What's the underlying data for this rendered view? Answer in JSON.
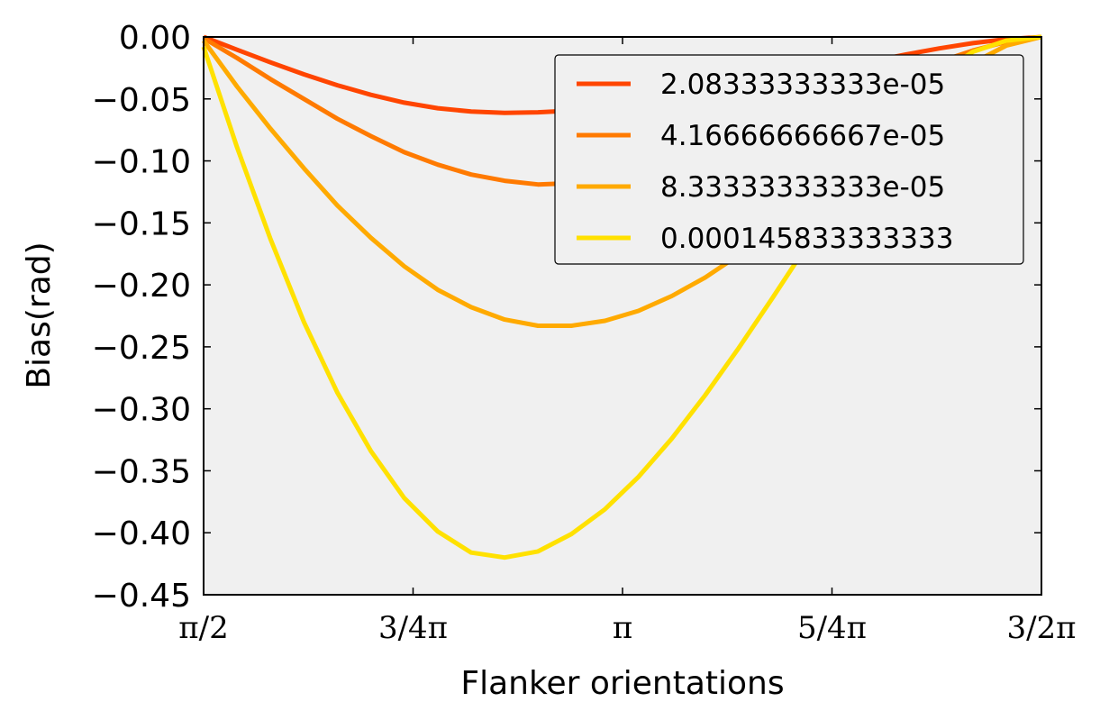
{
  "chart_data": {
    "type": "line",
    "title": "",
    "xlabel": "Flanker orientations",
    "ylabel": "Bias(rad)",
    "xlim": [
      1.5708,
      4.7124
    ],
    "ylim": [
      -0.45,
      0.0
    ],
    "xticks": [
      {
        "value": 1.5708,
        "label": "π/2"
      },
      {
        "value": 2.3562,
        "label": "3/4π"
      },
      {
        "value": 3.1416,
        "label": "π"
      },
      {
        "value": 3.927,
        "label": "5/4π"
      },
      {
        "value": 4.7124,
        "label": "3/2π"
      }
    ],
    "yticks": [
      {
        "value": 0.0,
        "label": "0.00"
      },
      {
        "value": -0.05,
        "label": "−0.05"
      },
      {
        "value": -0.1,
        "label": "−0.10"
      },
      {
        "value": -0.15,
        "label": "−0.15"
      },
      {
        "value": -0.2,
        "label": "−0.20"
      },
      {
        "value": -0.25,
        "label": "−0.25"
      },
      {
        "value": -0.3,
        "label": "−0.30"
      },
      {
        "value": -0.35,
        "label": "−0.35"
      },
      {
        "value": -0.4,
        "label": "−0.40"
      },
      {
        "value": -0.45,
        "label": "−0.45"
      }
    ],
    "grid": false,
    "legend_position": "top-right",
    "plot_background": "#f0f0f0",
    "x": [
      1.5708,
      1.6962,
      1.8216,
      1.947,
      2.0724,
      2.1978,
      2.3232,
      2.4486,
      2.574,
      2.6994,
      2.8248,
      2.9502,
      3.0756,
      3.201,
      3.3264,
      3.4518,
      3.5772,
      3.7026,
      3.828,
      3.9534,
      4.0788,
      4.2042,
      4.3296,
      4.455,
      4.5804,
      4.7124
    ],
    "series": [
      {
        "name": "2.08333333333e-05",
        "color": "#ff4500",
        "values": [
          0.0,
          -0.0103,
          -0.0205,
          -0.0302,
          -0.039,
          -0.0467,
          -0.053,
          -0.0575,
          -0.0602,
          -0.0612,
          -0.0608,
          -0.0594,
          -0.0572,
          -0.0541,
          -0.0503,
          -0.046,
          -0.0412,
          -0.036,
          -0.0306,
          -0.025,
          -0.0195,
          -0.0142,
          -0.0092,
          -0.005,
          -0.0018,
          0.0
        ]
      },
      {
        "name": "4.16666666667e-05",
        "color": "#ff7a00",
        "values": [
          -0.001,
          -0.017,
          -0.034,
          -0.05,
          -0.066,
          -0.08,
          -0.093,
          -0.103,
          -0.111,
          -0.116,
          -0.119,
          -0.118,
          -0.115,
          -0.11,
          -0.103,
          -0.095,
          -0.086,
          -0.076,
          -0.065,
          -0.054,
          -0.042,
          -0.031,
          -0.02,
          -0.011,
          -0.004,
          0.0
        ]
      },
      {
        "name": "8.33333333333e-05",
        "color": "#ffaa00",
        "values": [
          -0.003,
          -0.04,
          -0.074,
          -0.106,
          -0.136,
          -0.162,
          -0.185,
          -0.204,
          -0.218,
          -0.228,
          -0.233,
          -0.233,
          -0.229,
          -0.221,
          -0.209,
          -0.194,
          -0.176,
          -0.156,
          -0.134,
          -0.111,
          -0.087,
          -0.063,
          -0.041,
          -0.021,
          -0.007,
          0.0
        ]
      },
      {
        "name": "0.000145833333333",
        "color": "#ffe100",
        "values": [
          -0.008,
          -0.089,
          -0.163,
          -0.23,
          -0.287,
          -0.334,
          -0.372,
          -0.399,
          -0.416,
          -0.42,
          -0.415,
          -0.401,
          -0.381,
          -0.355,
          -0.324,
          -0.289,
          -0.251,
          -0.211,
          -0.17,
          -0.13,
          -0.091,
          -0.057,
          -0.03,
          -0.012,
          -0.003,
          0.0
        ]
      }
    ]
  }
}
